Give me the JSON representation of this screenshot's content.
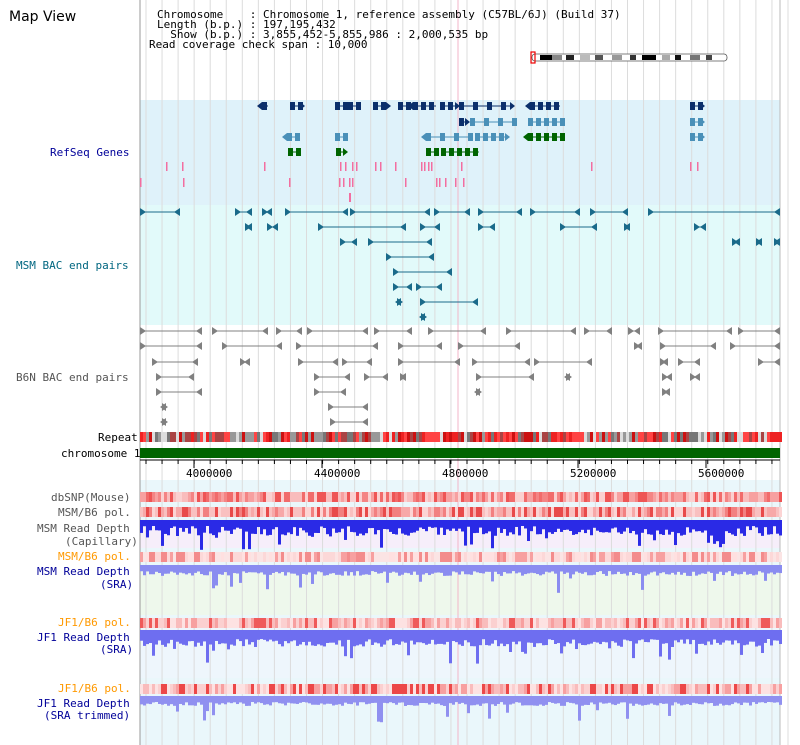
{
  "page": {
    "title": "Map View"
  },
  "header": {
    "chromosome_line": "Chromosome    : Chromosome 1, reference assembly (C57BL/6J) (Build 37)",
    "length_line": "Length (b.p.) : 197,195,432",
    "show_line": "  Show (b.p.) : 3,855,452-5,855,986 : 2,000,535 bp",
    "coverage_line": "Read coverage check span : 10,000"
  },
  "tracks": {
    "refseq": "RefSeq Genes",
    "msm_bac": "MSM BAC end pairs",
    "b6n_bac": "B6N BAC end pairs",
    "repeat": "Repeat",
    "chromosome": "chromosome 1",
    "dbsnp": "dbSNP(Mouse)",
    "msm_b6_pol": "MSM/B6 pol.",
    "msm_depth_cap_1": "MSM Read Depth",
    "msm_depth_cap_2": "(Capillary)",
    "msm_b6_pol_sra": "MSM/B6 pol.",
    "msm_depth_sra_1": "MSM Read Depth",
    "msm_depth_sra_2": "(SRA)",
    "jf1_b6_pol": "JF1/B6 pol.",
    "jf1_depth_1": "JF1 Read Depth",
    "jf1_depth_2": "(SRA)",
    "jf1_b6_pol_trim": "JF1/B6 pol.",
    "jf1_trim_1": "JF1 Read Depth",
    "jf1_trim_2": "(SRA trimmed)"
  },
  "axis": {
    "ticks": [
      "4000000",
      "4400000",
      "4800000",
      "5200000",
      "5600000"
    ]
  },
  "colors": {
    "refseq_bg": "#dff2fa",
    "msm_bg": "#e2fafa",
    "chrom_green": "#006400",
    "label_navy": "#000099",
    "label_teal": "#006680",
    "label_gray": "#555555",
    "label_orange": "#ff9900",
    "depth_blue": "#3333ee"
  }
}
